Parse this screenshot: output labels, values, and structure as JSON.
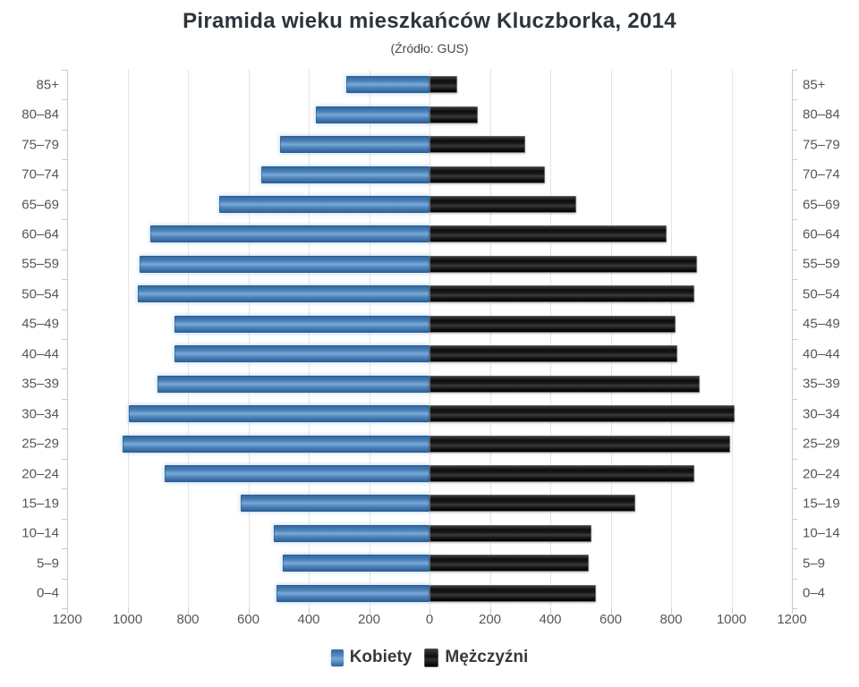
{
  "title": "Piramida wieku mieszkańców Kluczborka, 2014",
  "subtitle": "(Źródło: GUS)",
  "legend": [
    {
      "label": "Kobiety",
      "color": "#4b82b8"
    },
    {
      "label": "Mężczyźni",
      "color": "#1b1b1b"
    }
  ],
  "colors": {
    "female_bar": "#4b82b8",
    "male_bar": "#1b1b1b",
    "gridline": "#e4e4e6",
    "axis_line": "#c9cacc",
    "axis_text": "#565656",
    "title_text": "#2c353c"
  },
  "chart_data": {
    "type": "bar",
    "variant": "population-pyramid-horizontal",
    "title": "Piramida wieku mieszkańców Kluczborka, 2014",
    "subtitle": "(Źródło: GUS)",
    "categories": [
      "85+",
      "80–84",
      "75–79",
      "70–74",
      "65–69",
      "60–64",
      "55–59",
      "50–54",
      "45–49",
      "40–44",
      "35–39",
      "30–34",
      "25–29",
      "20–24",
      "15–19",
      "10–14",
      "5–9",
      "0–4"
    ],
    "series": [
      {
        "name": "Kobiety",
        "side": "left",
        "color": "#4b82b8",
        "values": [
          270,
          370,
          490,
          550,
          690,
          920,
          955,
          960,
          840,
          840,
          895,
          990,
          1010,
          870,
          620,
          510,
          480,
          500
        ]
      },
      {
        "name": "Mężczyźni",
        "side": "right",
        "color": "#1b1b1b",
        "values": [
          85,
          155,
          310,
          375,
          480,
          780,
          880,
          870,
          810,
          815,
          890,
          1005,
          990,
          870,
          675,
          530,
          520,
          545
        ]
      }
    ],
    "x_tick_labels": [
      "1200",
      "1000",
      "800",
      "600",
      "400",
      "200",
      "0",
      "200",
      "400",
      "600",
      "800",
      "1000",
      "1200"
    ],
    "x_tick_step": 200,
    "xlim_each_side": [
      0,
      1200
    ],
    "grid": true,
    "legend_position": "bottom",
    "axis_labels_mirrored": true
  }
}
